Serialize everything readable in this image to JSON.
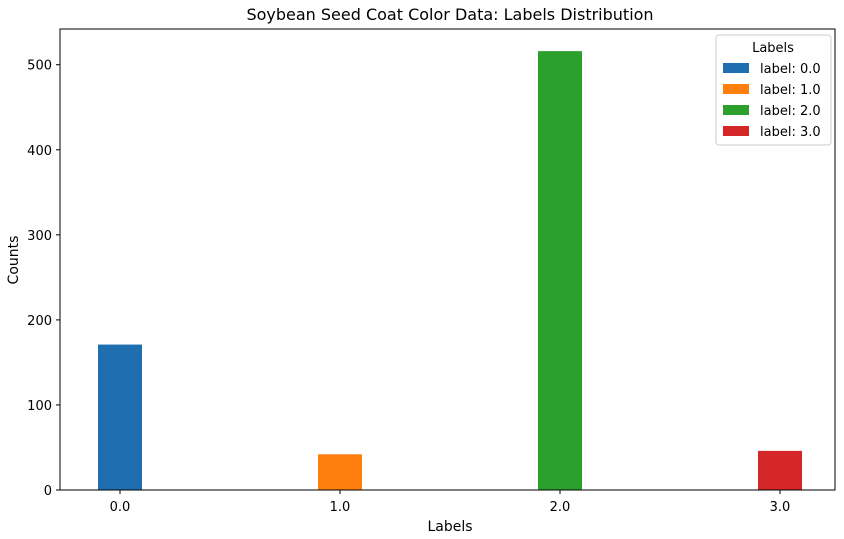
{
  "chart_data": {
    "type": "bar",
    "title": "Soybean Seed Coat Color Data: Labels Distribution",
    "xlabel": "Labels",
    "ylabel": "Counts",
    "categories": [
      "0.0",
      "1.0",
      "2.0",
      "3.0"
    ],
    "series": [
      {
        "name": "label: 0.0",
        "color": "#1f6fb0",
        "values": [
          171,
          null,
          null,
          null
        ]
      },
      {
        "name": "label: 1.0",
        "color": "#ff7f0e",
        "values": [
          null,
          42,
          null,
          null
        ]
      },
      {
        "name": "label: 2.0",
        "color": "#2ca02c",
        "values": [
          null,
          null,
          516,
          null
        ]
      },
      {
        "name": "label: 3.0",
        "color": "#d62728",
        "values": [
          null,
          null,
          null,
          46
        ]
      }
    ],
    "yticks": [
      "0",
      "100",
      "200",
      "300",
      "400",
      "500"
    ],
    "ylim": [
      0,
      542
    ],
    "legend": {
      "title": "Labels",
      "placement": "top-right"
    },
    "grid": false
  }
}
